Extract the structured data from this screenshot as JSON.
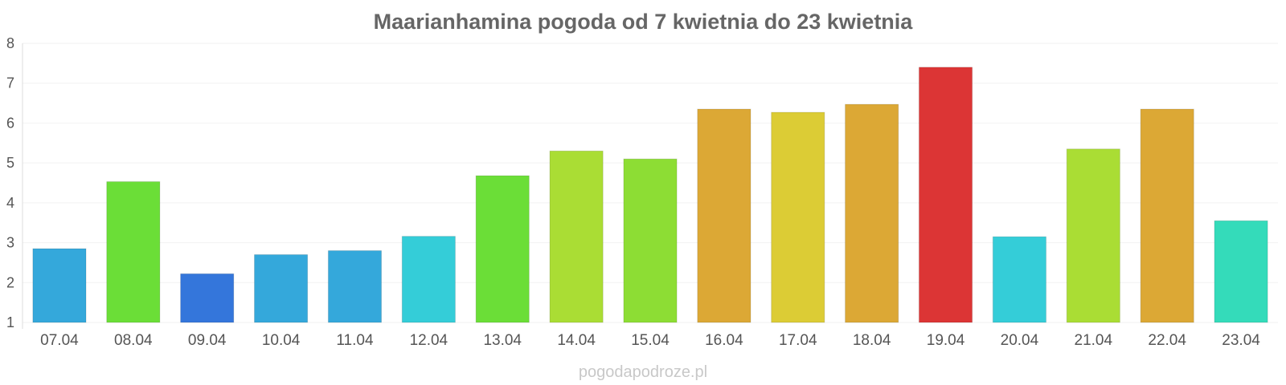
{
  "chart_data": {
    "type": "bar",
    "title": "Maarianhamina pogoda od 7 kwietnia do 23 kwietnia",
    "xlabel": "",
    "ylabel": "",
    "ylim": [
      1,
      8
    ],
    "yticks": [
      1,
      2,
      3,
      4,
      5,
      6,
      7,
      8
    ],
    "grid": true,
    "categories": [
      "07.04",
      "08.04",
      "09.04",
      "10.04",
      "11.04",
      "12.04",
      "13.04",
      "14.04",
      "15.04",
      "16.04",
      "17.04",
      "18.04",
      "19.04",
      "20.04",
      "21.04",
      "22.04",
      "23.04"
    ],
    "values": [
      2.85,
      4.53,
      2.22,
      2.7,
      2.8,
      3.16,
      4.68,
      5.3,
      5.1,
      6.35,
      6.27,
      6.47,
      7.4,
      3.15,
      5.35,
      6.35,
      3.55
    ],
    "colors": [
      "#34a8db",
      "#6bde37",
      "#3476db",
      "#34a8db",
      "#34a8db",
      "#34cdd8",
      "#6bde37",
      "#aadd34",
      "#8ddd34",
      "#dca835",
      "#dccc35",
      "#dca835",
      "#dc3535",
      "#34cdd8",
      "#aadd34",
      "#dca835",
      "#34dbba"
    ]
  },
  "watermark": "pogodapodroze.pl"
}
